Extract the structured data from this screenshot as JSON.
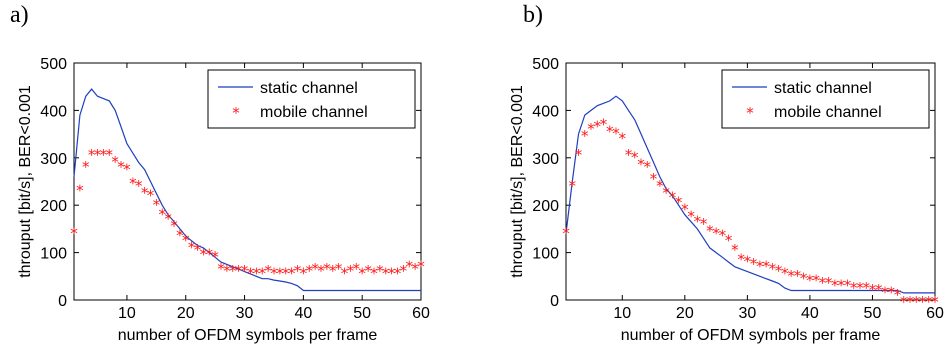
{
  "panels": [
    {
      "label": "a)"
    },
    {
      "label": "b)"
    }
  ],
  "chart_data": [
    {
      "type": "line",
      "xlabel": "number of OFDM symbols per frame",
      "ylabel": "throuput [bit/s], BER<0.001",
      "xlim": [
        1,
        60
      ],
      "ylim": [
        0,
        500
      ],
      "xticks": [
        10,
        20,
        30,
        40,
        50,
        60
      ],
      "yticks": [
        0,
        100,
        200,
        300,
        400,
        500
      ],
      "legend_position": "top-right",
      "series": [
        {
          "name": "static channel",
          "style": "line",
          "color": "#1f3fbf",
          "x": [
            1,
            2,
            3,
            4,
            5,
            6,
            7,
            8,
            9,
            10,
            11,
            12,
            13,
            14,
            15,
            16,
            17,
            18,
            19,
            20,
            21,
            22,
            23,
            24,
            25,
            26,
            27,
            28,
            29,
            30,
            31,
            32,
            33,
            34,
            35,
            36,
            37,
            38,
            39,
            40,
            41,
            42,
            43,
            44,
            45,
            46,
            47,
            48,
            49,
            50,
            51,
            52,
            53,
            54,
            55,
            56,
            57,
            58,
            59,
            60
          ],
          "values": [
            260,
            390,
            430,
            445,
            430,
            425,
            420,
            400,
            365,
            330,
            310,
            290,
            275,
            250,
            225,
            200,
            180,
            165,
            150,
            135,
            125,
            115,
            110,
            100,
            90,
            80,
            75,
            70,
            65,
            60,
            55,
            50,
            45,
            45,
            42,
            40,
            38,
            35,
            30,
            20,
            20,
            20,
            20,
            20,
            20,
            20,
            20,
            20,
            20,
            20,
            20,
            20,
            20,
            20,
            20,
            20,
            20,
            20,
            20,
            20
          ]
        },
        {
          "name": "mobile channel",
          "style": "markers",
          "marker": "*",
          "color": "#ff1a1a",
          "x": [
            1,
            2,
            3,
            4,
            5,
            6,
            7,
            8,
            9,
            10,
            11,
            12,
            13,
            14,
            15,
            16,
            17,
            18,
            19,
            20,
            21,
            22,
            23,
            24,
            25,
            26,
            27,
            28,
            29,
            30,
            31,
            32,
            33,
            34,
            35,
            36,
            37,
            38,
            39,
            40,
            41,
            42,
            43,
            44,
            45,
            46,
            47,
            48,
            49,
            50,
            51,
            52,
            53,
            54,
            55,
            56,
            57,
            58,
            59,
            60
          ],
          "values": [
            145,
            235,
            285,
            310,
            310,
            310,
            310,
            295,
            285,
            280,
            250,
            245,
            230,
            225,
            205,
            185,
            175,
            160,
            140,
            130,
            115,
            110,
            100,
            100,
            95,
            70,
            65,
            65,
            65,
            65,
            60,
            60,
            60,
            65,
            60,
            60,
            60,
            60,
            65,
            60,
            65,
            70,
            65,
            70,
            65,
            70,
            60,
            65,
            70,
            60,
            65,
            60,
            65,
            60,
            60,
            60,
            65,
            75,
            70,
            75
          ]
        }
      ]
    },
    {
      "type": "line",
      "xlabel": "number of OFDM symbols per frame",
      "ylabel": "throuput [bit/s], BER<0.001",
      "xlim": [
        1,
        60
      ],
      "ylim": [
        0,
        500
      ],
      "xticks": [
        10,
        20,
        30,
        40,
        50,
        60
      ],
      "yticks": [
        0,
        100,
        200,
        300,
        400,
        500
      ],
      "legend_position": "top-right",
      "series": [
        {
          "name": "static channel",
          "style": "line",
          "color": "#1f3fbf",
          "x": [
            1,
            2,
            3,
            4,
            5,
            6,
            7,
            8,
            9,
            10,
            11,
            12,
            13,
            14,
            15,
            16,
            17,
            18,
            19,
            20,
            21,
            22,
            23,
            24,
            25,
            26,
            27,
            28,
            29,
            30,
            31,
            32,
            33,
            34,
            35,
            36,
            37,
            38,
            39,
            40,
            41,
            42,
            43,
            44,
            45,
            46,
            47,
            48,
            49,
            50,
            51,
            52,
            53,
            54,
            55,
            56,
            57,
            58,
            59,
            60
          ],
          "values": [
            140,
            250,
            350,
            390,
            400,
            410,
            415,
            420,
            430,
            420,
            400,
            380,
            350,
            320,
            290,
            260,
            235,
            220,
            200,
            180,
            165,
            150,
            130,
            110,
            100,
            90,
            80,
            70,
            65,
            60,
            55,
            50,
            45,
            40,
            35,
            25,
            20,
            20,
            20,
            20,
            20,
            20,
            20,
            20,
            20,
            20,
            20,
            20,
            20,
            20,
            20,
            20,
            20,
            20,
            15,
            15,
            15,
            15,
            15,
            15
          ]
        },
        {
          "name": "mobile channel",
          "style": "markers",
          "marker": "*",
          "color": "#ff1a1a",
          "x": [
            1,
            2,
            3,
            4,
            5,
            6,
            7,
            8,
            9,
            10,
            11,
            12,
            13,
            14,
            15,
            16,
            17,
            18,
            19,
            20,
            21,
            22,
            23,
            24,
            25,
            26,
            27,
            28,
            29,
            30,
            31,
            32,
            33,
            34,
            35,
            36,
            37,
            38,
            39,
            40,
            41,
            42,
            43,
            44,
            45,
            46,
            47,
            48,
            49,
            50,
            51,
            52,
            53,
            54,
            55,
            56,
            57,
            58,
            59,
            60
          ],
          "values": [
            145,
            245,
            310,
            350,
            365,
            370,
            375,
            360,
            355,
            345,
            310,
            305,
            290,
            285,
            260,
            245,
            230,
            220,
            210,
            195,
            180,
            170,
            165,
            150,
            145,
            140,
            130,
            110,
            90,
            85,
            80,
            75,
            75,
            70,
            65,
            60,
            55,
            55,
            50,
            45,
            45,
            40,
            40,
            35,
            35,
            35,
            30,
            30,
            30,
            25,
            25,
            20,
            20,
            15,
            0,
            0,
            0,
            0,
            0,
            0
          ]
        }
      ]
    }
  ]
}
